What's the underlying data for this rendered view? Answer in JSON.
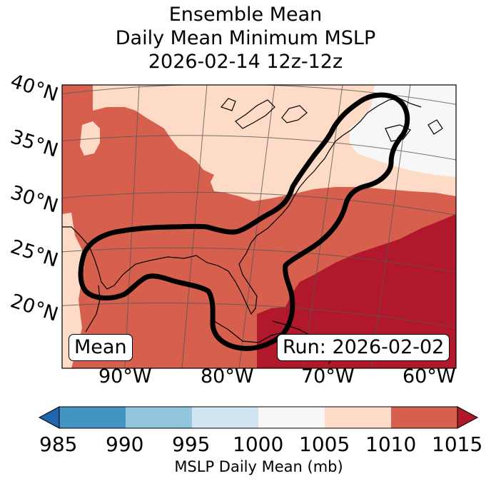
{
  "title": {
    "line1": "Ensemble Mean",
    "line2": "Daily Mean Minimum MSLP",
    "line3": "2026-02-14 12z-12z"
  },
  "map": {
    "lat_labels": [
      "40°N",
      "35°N",
      "30°N",
      "25°N",
      "20°N"
    ],
    "lon_labels": [
      "90°W",
      "80°W",
      "70°W",
      "60°W"
    ],
    "left_box": "Mean",
    "right_box": "Run: 2026-02-02"
  },
  "colorbar": {
    "ticks": [
      "985",
      "990",
      "995",
      "1000",
      "1005",
      "1010",
      "1015"
    ],
    "label": "MSLP Daily Mean (mb)",
    "colors": [
      "#2166ac",
      "#4393c3",
      "#92c5de",
      "#d1e5f0",
      "#f7f7f7",
      "#fddbc7",
      "#d6604d",
      "#b2182b"
    ]
  }
}
